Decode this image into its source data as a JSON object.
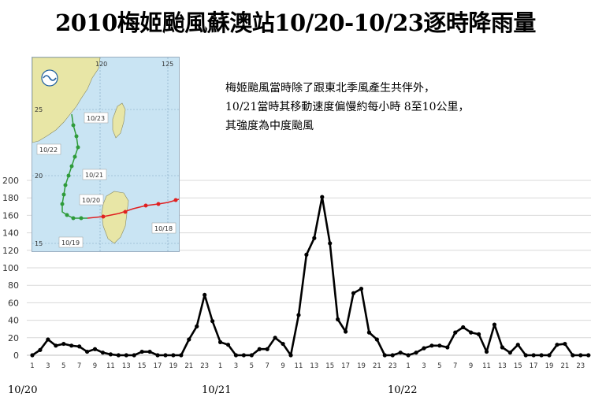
{
  "title": "2010梅姬颱風蘇澳站10/20-10/23逐時降雨量",
  "description": [
    "梅姬颱風當時除了跟東北季風產生共伴外，",
    "10/21當時其移動速度偏慢約每小時 8至10公里，",
    "其強度為中度颱風"
  ],
  "date_labels": [
    "10/20",
    "10/21",
    "10/22"
  ],
  "map": {
    "lon_labels": [
      "120",
      "125"
    ],
    "lat_labels": [
      "25",
      "20",
      "15"
    ],
    "track_labels": [
      "10/23",
      "10/22",
      "10/21",
      "10/20",
      "10/19",
      "10/18"
    ],
    "colors": {
      "sea": "#c9e4f3",
      "land": "#e8e6a6",
      "track_green": "#2e9b3a",
      "track_red": "#e02020"
    },
    "icons": [
      "cwb-logo-icon"
    ]
  },
  "chart_data": {
    "type": "line",
    "x_tick_labels": [
      "1",
      "3",
      "5",
      "7",
      "9",
      "11",
      "13",
      "15",
      "17",
      "19",
      "21",
      "23",
      "1",
      "3",
      "5",
      "7",
      "9",
      "11",
      "13",
      "15",
      "17",
      "19",
      "21",
      "23",
      "1",
      "3",
      "5",
      "7",
      "9",
      "11",
      "13",
      "15",
      "17",
      "19",
      "21",
      "23"
    ],
    "values": [
      0,
      6,
      18,
      11,
      13,
      11,
      10,
      4,
      7,
      3,
      1,
      0,
      0,
      0,
      4,
      4,
      0,
      0,
      0,
      0,
      18,
      33,
      69,
      39,
      15,
      12,
      0,
      0,
      0,
      7,
      7,
      20,
      13,
      0,
      46,
      115,
      134,
      181,
      128,
      41,
      27,
      71,
      76,
      26,
      18,
      0,
      0,
      3,
      0,
      3,
      8,
      11,
      11,
      9,
      26,
      32,
      26,
      24,
      4,
      35,
      9,
      3,
      12,
      0,
      0,
      0,
      0,
      12,
      13,
      0,
      0,
      0
    ],
    "ylim": [
      0,
      200
    ],
    "y_ticks": [
      0,
      20,
      40,
      60,
      80,
      100,
      120,
      140,
      160,
      180,
      200
    ],
    "grid": "horizontal",
    "line_color": "#000000"
  }
}
